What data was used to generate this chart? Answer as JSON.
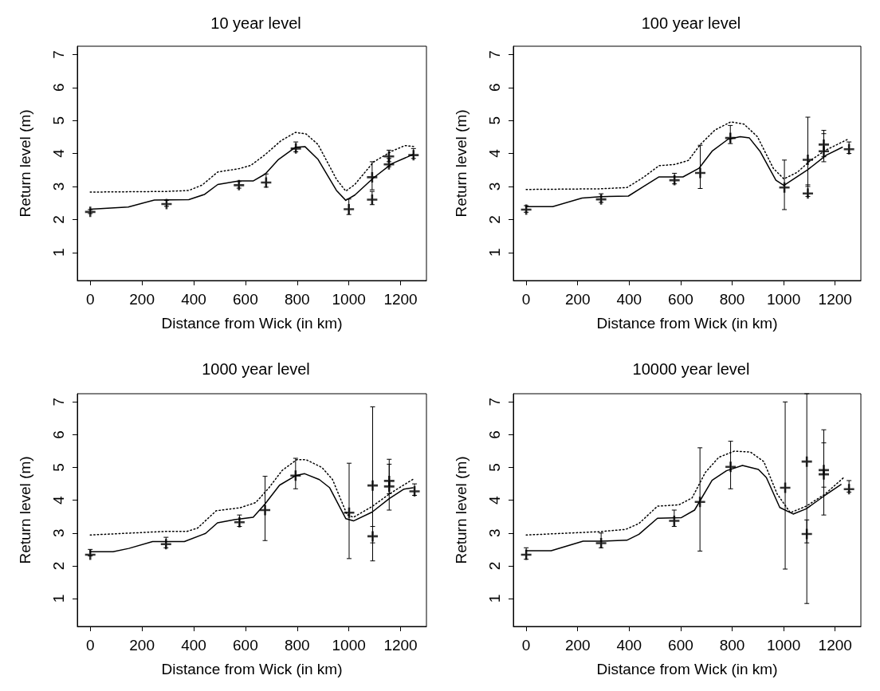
{
  "chart_data": [
    {
      "type": "line",
      "title": "10 year level",
      "xlabel": "Distance from Wick (in km)",
      "ylabel": "Return level (m)",
      "xlim": [
        -50,
        1300
      ],
      "ylim": [
        0.15,
        7.25
      ],
      "xticks": [
        0,
        200,
        400,
        600,
        800,
        1000,
        1200
      ],
      "yticks": [
        1,
        2,
        3,
        4,
        5,
        6,
        7
      ],
      "grid": false,
      "series": [
        {
          "line_style": "solid",
          "marker": "none",
          "color": "#000000",
          "x": [
            0,
            147,
            248,
            381,
            442,
            493,
            575,
            631,
            677,
            728,
            794,
            830,
            881,
            952,
            988,
            1023,
            1095,
            1166,
            1248
          ],
          "values": [
            2.31,
            2.38,
            2.59,
            2.6,
            2.76,
            3.06,
            3.17,
            3.17,
            3.38,
            3.82,
            4.19,
            4.21,
            3.82,
            2.88,
            2.58,
            2.74,
            3.26,
            3.69,
            3.97
          ]
        },
        {
          "line_style": "dotted",
          "marker": "none",
          "color": "#000000",
          "x": [
            0,
            294,
            381,
            432,
            493,
            575,
            621,
            677,
            738,
            794,
            835,
            881,
            952,
            988,
            1023,
            1095,
            1166,
            1217,
            1253
          ],
          "values": [
            2.83,
            2.85,
            2.88,
            3.04,
            3.44,
            3.54,
            3.64,
            3.97,
            4.39,
            4.64,
            4.59,
            4.27,
            3.22,
            2.86,
            3.06,
            3.74,
            4.07,
            4.24,
            4.21
          ]
        },
        {
          "type": "scatter",
          "marker": "cross",
          "color": "#000000",
          "x": [
            0,
            295,
            575,
            680,
            795,
            1000,
            1090,
            1090,
            1155,
            1155,
            1250
          ],
          "values": [
            2.23,
            2.47,
            3.04,
            3.12,
            4.15,
            2.31,
            3.28,
            2.6,
            3.91,
            3.67,
            3.95
          ],
          "errors": [
            [
              2.18,
              2.3
            ],
            [
              2.4,
              2.58
            ],
            [
              2.95,
              3.15
            ],
            [
              2.98,
              3.38
            ],
            [
              4.05,
              4.35
            ],
            [
              2.15,
              2.62
            ],
            [
              2.9,
              3.75
            ],
            [
              2.45,
              2.85
            ],
            [
              3.75,
              4.1
            ],
            [
              3.6,
              3.85
            ],
            [
              3.85,
              4.15
            ]
          ]
        }
      ]
    },
    {
      "type": "line",
      "title": "100 year level",
      "xlabel": "Distance from Wick (in km)",
      "ylabel": "Return level (m)",
      "xlim": [
        -50,
        1300
      ],
      "ylim": [
        0.15,
        7.25
      ],
      "xticks": [
        0,
        200,
        400,
        600,
        800,
        1000,
        1200
      ],
      "yticks": [
        1,
        2,
        3,
        4,
        5,
        6,
        7
      ],
      "grid": false,
      "series": [
        {
          "line_style": "solid",
          "marker": "none",
          "color": "#000000",
          "x": [
            0,
            103,
            217,
            289,
            397,
            454,
            516,
            609,
            671,
            722,
            784,
            831,
            867,
            908,
            970,
            1001,
            1094,
            1166,
            1228
          ],
          "values": [
            2.39,
            2.39,
            2.65,
            2.69,
            2.71,
            2.99,
            3.29,
            3.29,
            3.55,
            4.07,
            4.43,
            4.51,
            4.47,
            4.07,
            3.19,
            3.03,
            3.51,
            3.95,
            4.19
          ]
        },
        {
          "line_style": "dotted",
          "marker": "none",
          "color": "#000000",
          "x": [
            0,
            289,
            392,
            454,
            516,
            578,
            630,
            676,
            733,
            795,
            846,
            898,
            960,
            1001,
            1053,
            1104,
            1166,
            1249
          ],
          "values": [
            2.91,
            2.93,
            2.97,
            3.27,
            3.63,
            3.67,
            3.79,
            4.27,
            4.71,
            4.96,
            4.89,
            4.51,
            3.55,
            3.23,
            3.43,
            3.79,
            4.11,
            4.43
          ]
        },
        {
          "type": "scatter",
          "marker": "cross",
          "color": "#000000",
          "x": [
            0,
            291,
            576,
            676,
            793,
            1003,
            1094,
            1094,
            1156,
            1156,
            1254
          ],
          "values": [
            2.3,
            2.61,
            3.19,
            3.41,
            4.47,
            2.97,
            3.81,
            2.79,
            4.27,
            4.07,
            4.13
          ],
          "errors": [
            [
              2.22,
              2.42
            ],
            [
              2.52,
              2.78
            ],
            [
              3.08,
              3.4
            ],
            [
              2.94,
              4.25
            ],
            [
              4.3,
              4.85
            ],
            [
              2.3,
              3.8
            ],
            [
              3.0,
              5.1
            ],
            [
              2.7,
              3.05
            ],
            [
              3.75,
              4.7
            ],
            [
              3.9,
              4.6
            ],
            [
              4.0,
              4.35
            ]
          ]
        }
      ]
    },
    {
      "type": "line",
      "title": "1000 year level",
      "xlabel": "Distance from Wick (in km)",
      "ylabel": "Return level (m)",
      "xlim": [
        -50,
        1300
      ],
      "ylim": [
        0.15,
        7.25
      ],
      "xticks": [
        0,
        200,
        400,
        600,
        800,
        1000,
        1200
      ],
      "yticks": [
        1,
        2,
        3,
        4,
        5,
        6,
        7
      ],
      "grid": false,
      "series": [
        {
          "line_style": "solid",
          "marker": "none",
          "color": "#000000",
          "x": [
            0,
            88,
            149,
            241,
            364,
            446,
            492,
            558,
            630,
            676,
            732,
            794,
            829,
            886,
            926,
            988,
            1018,
            1090,
            1156,
            1213,
            1248
          ],
          "values": [
            2.43,
            2.43,
            2.53,
            2.74,
            2.74,
            2.99,
            3.31,
            3.41,
            3.48,
            3.89,
            4.46,
            4.75,
            4.81,
            4.63,
            4.38,
            3.44,
            3.37,
            3.64,
            4.05,
            4.34,
            4.38
          ]
        },
        {
          "line_style": "dotted",
          "marker": "none",
          "color": "#000000",
          "x": [
            0,
            293,
            374,
            415,
            487,
            579,
            640,
            691,
            742,
            799,
            834,
            896,
            937,
            993,
            1018,
            1090,
            1162,
            1254
          ],
          "values": [
            2.94,
            3.05,
            3.05,
            3.15,
            3.68,
            3.77,
            3.93,
            4.38,
            4.91,
            5.24,
            5.24,
            5.0,
            4.63,
            3.56,
            3.48,
            3.81,
            4.22,
            4.67
          ]
        },
        {
          "type": "scatter",
          "marker": "cross",
          "color": "#000000",
          "x": [
            0,
            293,
            577,
            676,
            794,
            1001,
            1092,
            1092,
            1156,
            1156,
            1254
          ],
          "values": [
            2.34,
            2.66,
            3.33,
            3.7,
            4.75,
            3.62,
            4.45,
            2.9,
            4.42,
            4.59,
            4.27
          ],
          "errors": [
            [
              2.3,
              2.5
            ],
            [
              2.55,
              2.87
            ],
            [
              3.2,
              3.55
            ],
            [
              2.77,
              4.73
            ],
            [
              4.35,
              5.28
            ],
            [
              2.22,
              5.13
            ],
            [
              2.15,
              6.85
            ],
            [
              2.7,
              3.2
            ],
            [
              3.7,
              5.25
            ],
            [
              4.2,
              5.1
            ],
            [
              4.15,
              4.5
            ]
          ]
        }
      ]
    },
    {
      "type": "line",
      "title": "10000 year level",
      "xlabel": "Distance from Wick (in km)",
      "ylabel": "Return level (m)",
      "xlim": [
        -50,
        1300
      ],
      "ylim": [
        0.15,
        7.25
      ],
      "xticks": [
        0,
        200,
        400,
        600,
        800,
        1000,
        1200
      ],
      "yticks": [
        1,
        2,
        3,
        4,
        5,
        6,
        7
      ],
      "grid": false,
      "series": [
        {
          "line_style": "solid",
          "marker": "none",
          "color": "#000000",
          "x": [
            0,
            97,
            221,
            283,
            391,
            438,
            510,
            603,
            654,
            722,
            778,
            840,
            902,
            933,
            985,
            1037,
            1088,
            1161,
            1223
          ],
          "values": [
            2.46,
            2.46,
            2.75,
            2.75,
            2.78,
            2.96,
            3.45,
            3.47,
            3.7,
            4.61,
            4.9,
            5.06,
            4.94,
            4.69,
            3.78,
            3.58,
            3.74,
            4.15,
            4.48
          ]
        },
        {
          "line_style": "dotted",
          "marker": "none",
          "color": "#000000",
          "x": [
            0,
            283,
            386,
            438,
            510,
            593,
            644,
            696,
            748,
            809,
            871,
            923,
            975,
            1026,
            1088,
            1161,
            1233
          ],
          "values": [
            2.94,
            3.04,
            3.11,
            3.29,
            3.82,
            3.86,
            4.07,
            4.85,
            5.31,
            5.5,
            5.47,
            5.18,
            4.19,
            3.62,
            3.82,
            4.19,
            4.69
          ]
        },
        {
          "type": "scatter",
          "marker": "cross",
          "color": "#000000",
          "x": [
            0,
            291,
            575,
            675,
            794,
            1006,
            1090,
            1090,
            1156,
            1156,
            1254
          ],
          "values": [
            2.34,
            2.69,
            3.37,
            3.95,
            5.02,
            4.38,
            5.18,
            2.97,
            4.92,
            4.79,
            4.34
          ],
          "errors": [
            [
              2.2,
              2.55
            ],
            [
              2.55,
              3.0
            ],
            [
              3.2,
              3.7
            ],
            [
              2.45,
              5.6
            ],
            [
              4.35,
              5.8
            ],
            [
              1.9,
              7.0
            ],
            [
              0.85,
              7.25
            ],
            [
              2.7,
              3.4
            ],
            [
              3.55,
              6.15
            ],
            [
              4.4,
              5.75
            ],
            [
              4.25,
              4.6
            ]
          ]
        }
      ]
    }
  ]
}
